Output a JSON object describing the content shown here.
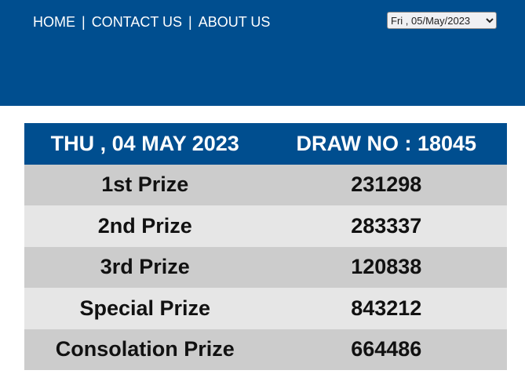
{
  "nav": {
    "items": [
      "HOME",
      "CONTACT US",
      "ABOUT US"
    ],
    "separator": "|"
  },
  "date_select": {
    "value": "Fri , 05/May/2023"
  },
  "results": {
    "date": "THU , 04 MAY 2023",
    "draw": "DRAW NO : 18045",
    "rows": [
      {
        "prize": "1st Prize",
        "number": "231298"
      },
      {
        "prize": "2nd Prize",
        "number": "283337"
      },
      {
        "prize": "3rd Prize",
        "number": "120838"
      },
      {
        "prize": "Special Prize",
        "number": "843212"
      },
      {
        "prize": "Consolation Prize",
        "number": "664486"
      }
    ]
  },
  "colors": {
    "brand": "#004e8f",
    "row_dark": "#cccccc",
    "row_light": "#e6e6e6"
  }
}
